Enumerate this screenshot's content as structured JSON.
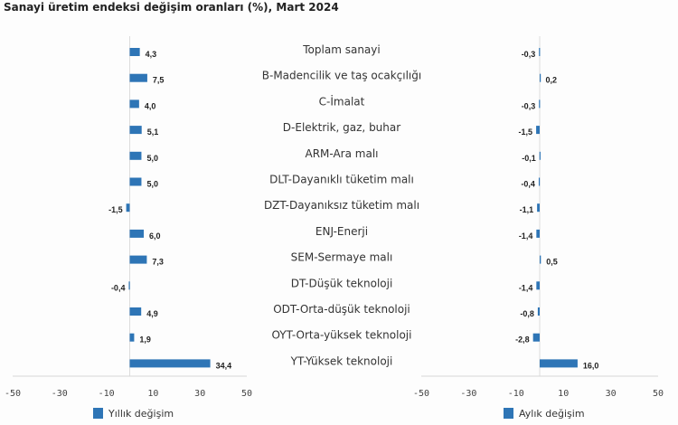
{
  "title": "Sanayi üretim endeksi değişim oranları (%), Mart 2024",
  "chart_data": {
    "type": "bar",
    "orientation": "horizontal",
    "title": "Sanayi üretim endeksi değişim oranları (%), Mart 2024",
    "categories": [
      "Toplam sanayi",
      "B-Madencilik ve taş ocakçılığı",
      "C-İmalat",
      "D-Elektrik, gaz, buhar",
      "ARM-Ara malı",
      "DLT-Dayanıklı tüketim malı",
      "DZT-Dayanıksız tüketim malı",
      "ENJ-Enerji",
      "SEM-Sermaye malı",
      "DT-Düşük teknoloji",
      "ODT-Orta-düşük teknoloji",
      "OYT-Orta-yüksek teknoloji",
      "YT-Yüksek teknoloji"
    ],
    "series": [
      {
        "name": "Yıllık değişim",
        "values": [
          4.3,
          7.5,
          4.0,
          5.1,
          5.0,
          5.0,
          -1.5,
          6.0,
          7.3,
          -0.4,
          4.9,
          1.9,
          34.4
        ],
        "labels": [
          "4,3",
          "7,5",
          "4,0",
          "5,1",
          "5,0",
          "5,0",
          "-1,5",
          "6,0",
          "7,3",
          "-0,4",
          "4,9",
          "1,9",
          "34,4"
        ]
      },
      {
        "name": "Aylık değişim",
        "values": [
          -0.3,
          0.2,
          -0.3,
          -1.5,
          -0.1,
          -0.4,
          -1.1,
          -1.4,
          0.5,
          -1.4,
          -0.8,
          -2.8,
          16.0
        ],
        "labels": [
          "-0,3",
          "0,2",
          "-0,3",
          "-1,5",
          "-0,1",
          "-0,4",
          "-1,1",
          "-1,4",
          "0,5",
          "-1,4",
          "-0,8",
          "-2,8",
          "16,0"
        ]
      }
    ],
    "xlim": [
      -50,
      50
    ],
    "xticks": [
      "-50",
      "-30",
      "-10",
      "10",
      "30",
      "50"
    ],
    "xtick_values": [
      -50,
      -30,
      -10,
      10,
      30,
      50
    ],
    "bar_color": "#2e75b6",
    "legend_position": "bottom"
  }
}
